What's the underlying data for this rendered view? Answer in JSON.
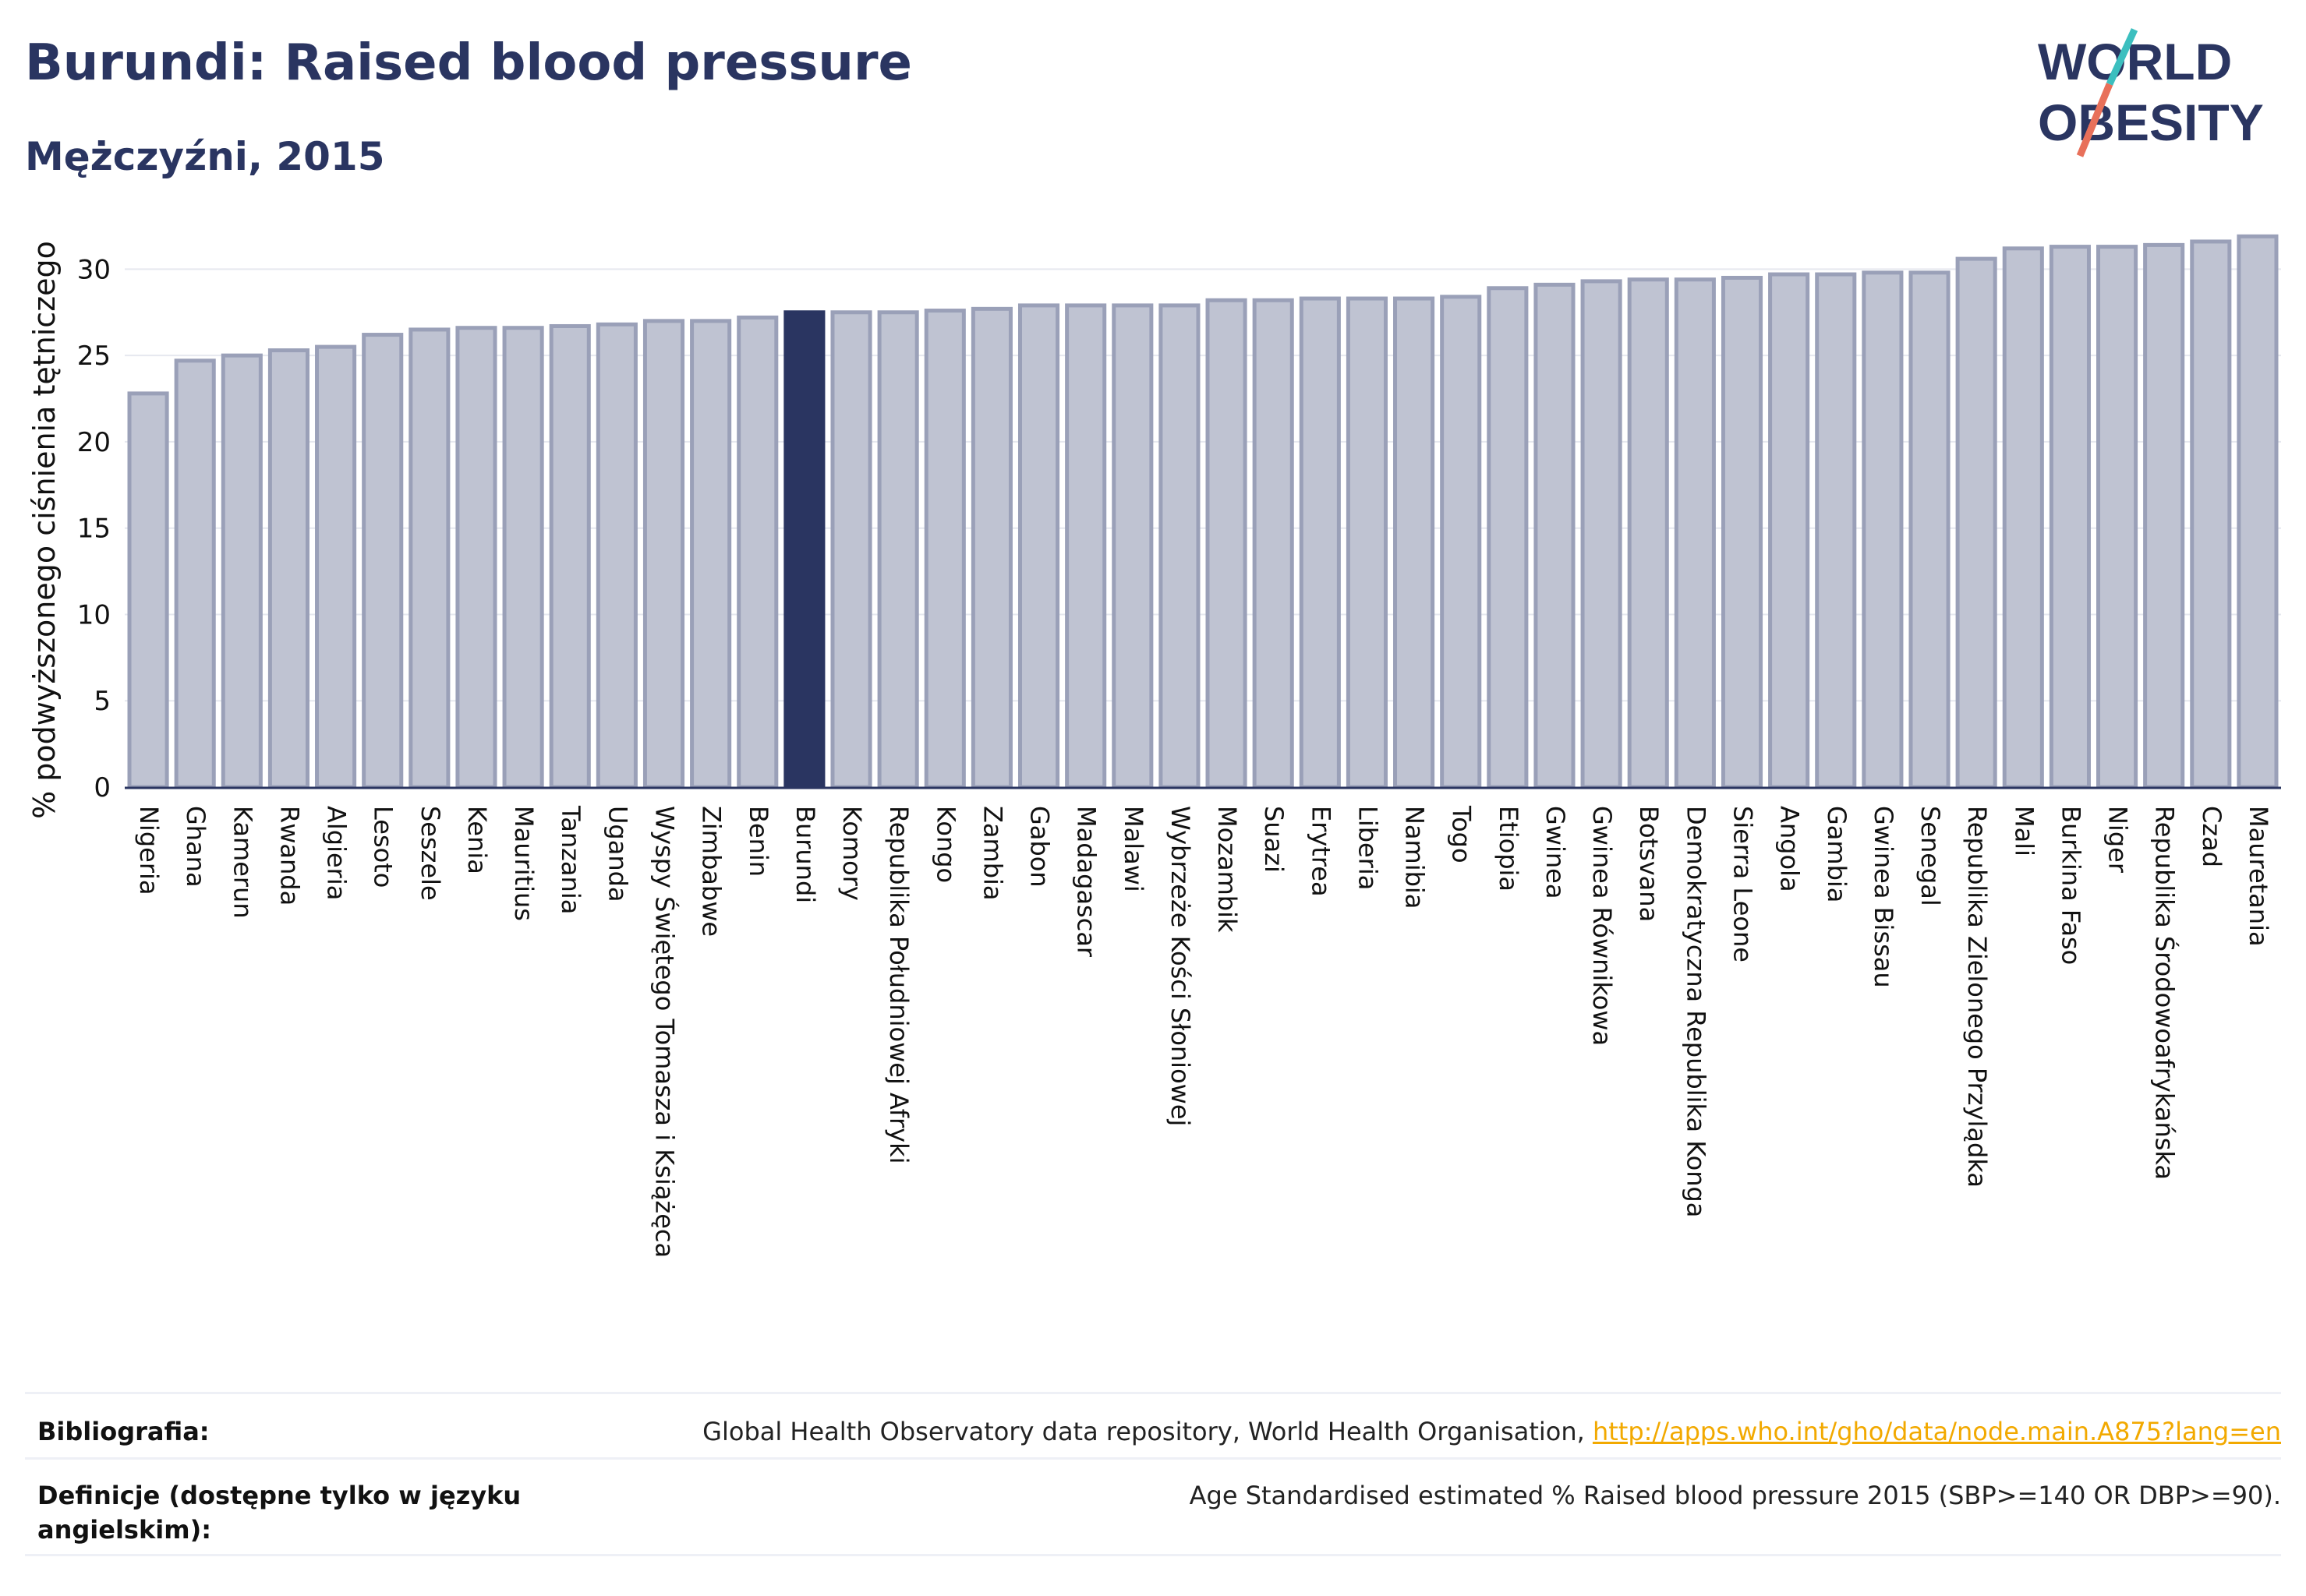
{
  "title": "Burundi: Raised blood pressure",
  "subtitle": "Mężczyźni, 2015",
  "logo": {
    "line1": "WORLD",
    "line2": "OBESITY"
  },
  "colors": {
    "bar": "#bfc3d2",
    "bar_stroke": "#9aa0b8",
    "highlight": "#2a3561",
    "text": "#2a3561",
    "logo_slash_top": "#3cbfbf",
    "logo_slash_bottom": "#e8705a"
  },
  "chart_data": {
    "type": "bar",
    "ylabel": "% podwyższonego ciśnienia tętniczego",
    "xlabel": "",
    "ylim": [
      0,
      32.5
    ],
    "yticks": [
      0,
      5,
      10,
      15,
      20,
      25,
      30
    ],
    "grid": true,
    "highlight": "Burundi",
    "categories": [
      "Nigeria",
      "Ghana",
      "Kamerun",
      "Rwanda",
      "Algieria",
      "Lesoto",
      "Seszele",
      "Kenia",
      "Mauritius",
      "Tanzania",
      "Uganda",
      "Wyspy Świętego Tomasza i Książęca",
      "Zimbabwe",
      "Benin",
      "Burundi",
      "Komory",
      "Republika Południowej Afryki",
      "Kongo",
      "Zambia",
      "Gabon",
      "Madagascar",
      "Malawi",
      "Wybrzeże Kości Słoniowej",
      "Mozambik",
      "Suazi",
      "Erytrea",
      "Liberia",
      "Namibia",
      "Togo",
      "Etiopia",
      "Gwinea",
      "Gwinea Równikowa",
      "Botsvana",
      "Demokratyczna Republika Konga",
      "Sierra Leone",
      "Angola",
      "Gambia",
      "Gwinea Bissau",
      "Senegal",
      "Republika Zielonego Przylądka",
      "Mali",
      "Burkina Faso",
      "Niger",
      "Republika Środowoafrykańska",
      "Czad",
      "Mauretania"
    ],
    "values": [
      22.8,
      24.7,
      25.0,
      25.3,
      25.5,
      26.2,
      26.5,
      26.6,
      26.6,
      26.7,
      26.8,
      27.0,
      27.0,
      27.2,
      27.5,
      27.5,
      27.5,
      27.6,
      27.7,
      27.9,
      27.9,
      27.9,
      27.9,
      28.2,
      28.2,
      28.3,
      28.3,
      28.3,
      28.4,
      28.9,
      29.1,
      29.3,
      29.4,
      29.4,
      29.5,
      29.7,
      29.7,
      29.8,
      29.8,
      30.6,
      31.2,
      31.3,
      31.3,
      31.4,
      31.6,
      31.9
    ]
  },
  "footer": {
    "bib_label": "Bibliografia:",
    "bib_text": "Global Health Observatory data repository, World Health Organisation, ",
    "bib_link": "http://apps.who.int/gho/data/node.main.A875?lang=en",
    "def_label_1": "Definicje (dostępne tylko w języku",
    "def_label_2": "angielskim):",
    "def_text": "Age Standardised estimated % Raised blood pressure 2015 (SBP>=140 OR DBP>=90)."
  }
}
